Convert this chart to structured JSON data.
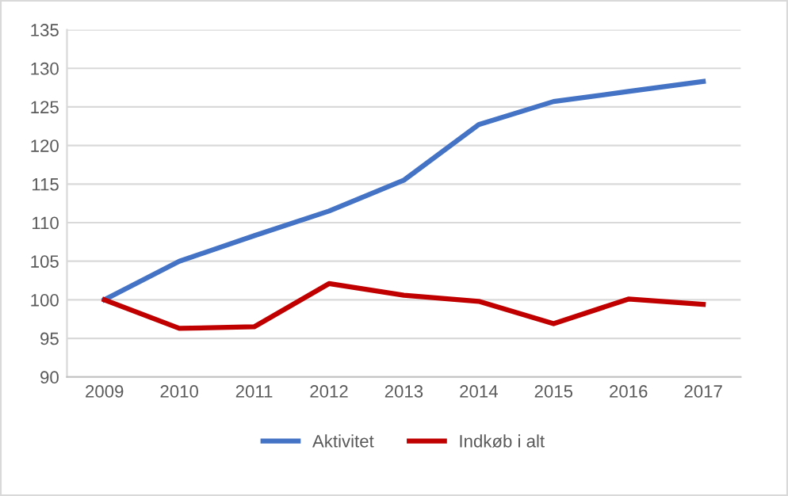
{
  "chart_data": {
    "type": "line",
    "categories": [
      "2009",
      "2010",
      "2011",
      "2012",
      "2013",
      "2014",
      "2015",
      "2016",
      "2017"
    ],
    "series": [
      {
        "name": "Aktivitet",
        "color": "#4472c4",
        "values": [
          100,
          105,
          108.3,
          111.5,
          115.5,
          122.7,
          125.7,
          127,
          128.3
        ]
      },
      {
        "name": "Indkøb i alt",
        "color": "#c00000",
        "values": [
          100,
          96.3,
          96.5,
          102.1,
          100.6,
          99.8,
          96.9,
          100.1,
          99.4
        ]
      }
    ],
    "ylim": [
      90,
      135
    ],
    "yticks": [
      90,
      95,
      100,
      105,
      110,
      115,
      120,
      125,
      130,
      135
    ],
    "grid": "y",
    "legend": "bottom",
    "marker": "none",
    "line_style": "solid"
  }
}
